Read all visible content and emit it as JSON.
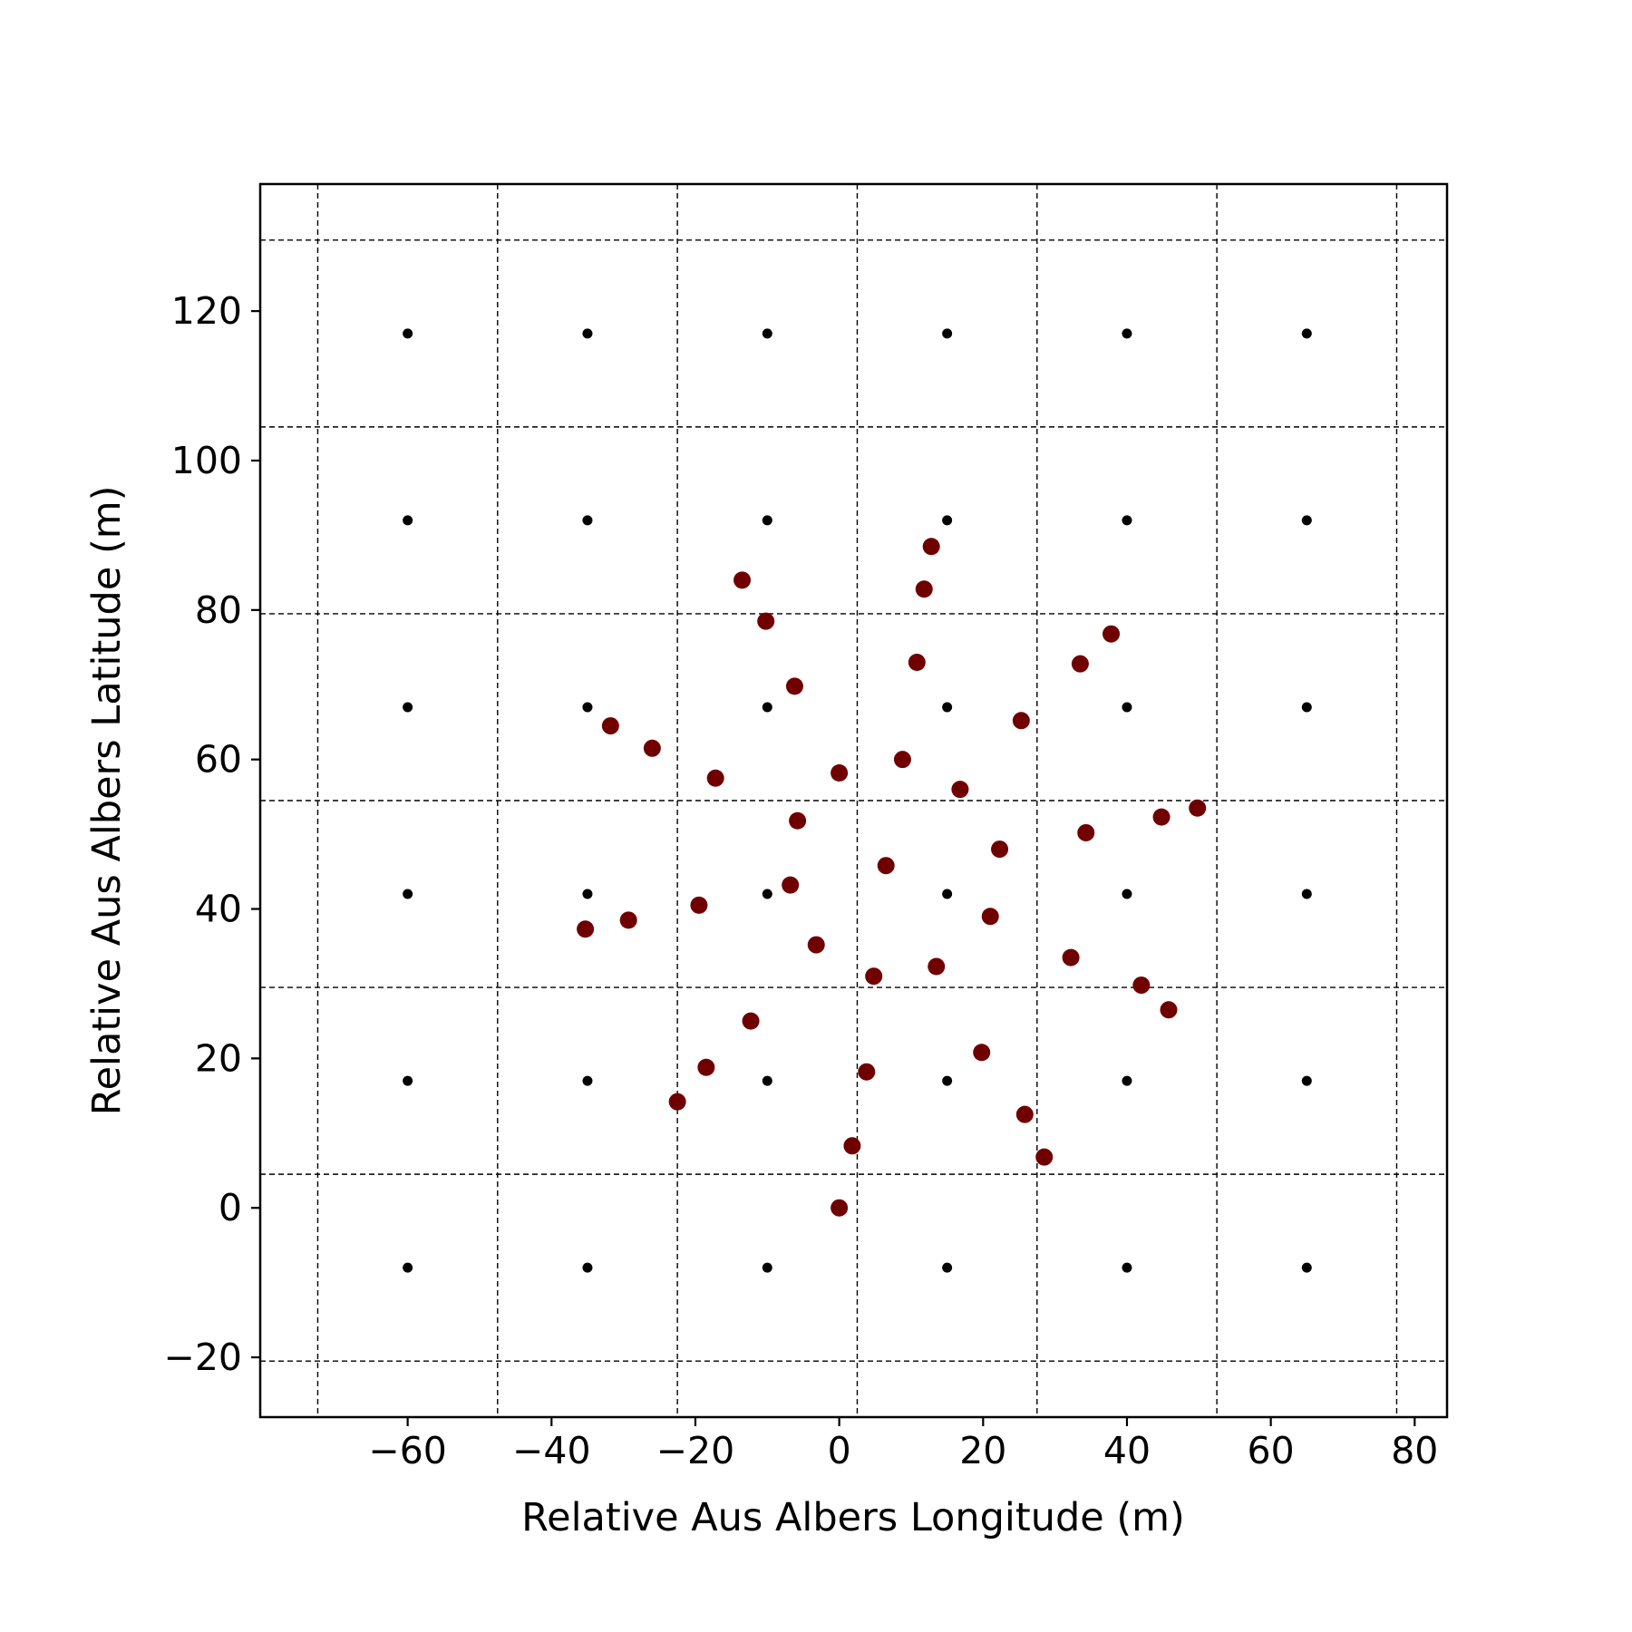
{
  "chart_data": {
    "type": "scatter",
    "title": "",
    "xlabel": "Relative Aus Albers Longitude (m)",
    "ylabel": "Relative Aus Albers Latitude (m)",
    "xlim": [
      -80.5,
      84.5
    ],
    "ylim": [
      -28,
      137
    ],
    "x_ticks": [
      -60,
      -40,
      -20,
      0,
      20,
      40,
      60,
      80
    ],
    "y_ticks": [
      -20,
      0,
      20,
      40,
      60,
      80,
      100,
      120
    ],
    "x_tick_labels": [
      "−60",
      "−40",
      "−20",
      "0",
      "20",
      "40",
      "60",
      "80"
    ],
    "y_tick_labels": [
      "−20",
      "0",
      "20",
      "40",
      "60",
      "80",
      "100",
      "120"
    ],
    "grid": {
      "style": "dashed",
      "x_lines": [
        -72.5,
        -47.5,
        -22.5,
        2.5,
        27.5,
        52.5,
        77.5
      ],
      "y_lines": [
        -20.5,
        4.5,
        29.5,
        54.5,
        79.5,
        104.5,
        129.5
      ]
    },
    "legend": "none",
    "series": [
      {
        "marker": "small-circle",
        "color": "#000000",
        "points": [
          [
            -60,
            117
          ],
          [
            -35,
            117
          ],
          [
            -10,
            117
          ],
          [
            15,
            117
          ],
          [
            40,
            117
          ],
          [
            65,
            117
          ],
          [
            -60,
            92
          ],
          [
            -35,
            92
          ],
          [
            -10,
            92
          ],
          [
            15,
            92
          ],
          [
            40,
            92
          ],
          [
            65,
            92
          ],
          [
            -60,
            67
          ],
          [
            -35,
            67
          ],
          [
            -10,
            67
          ],
          [
            15,
            67
          ],
          [
            40,
            67
          ],
          [
            65,
            67
          ],
          [
            -60,
            42
          ],
          [
            -35,
            42
          ],
          [
            -10,
            42
          ],
          [
            15,
            42
          ],
          [
            40,
            42
          ],
          [
            65,
            42
          ],
          [
            -60,
            17
          ],
          [
            -35,
            17
          ],
          [
            -10,
            17
          ],
          [
            15,
            17
          ],
          [
            40,
            17
          ],
          [
            65,
            17
          ],
          [
            -60,
            -8
          ],
          [
            -35,
            -8
          ],
          [
            -10,
            -8
          ],
          [
            15,
            -8
          ],
          [
            40,
            -8
          ],
          [
            65,
            -8
          ]
        ]
      },
      {
        "marker": "circle",
        "color": "#700000",
        "points": [
          [
            12.8,
            88.5
          ],
          [
            -13.5,
            84
          ],
          [
            11.8,
            82.8
          ],
          [
            -10.2,
            78.5
          ],
          [
            37.8,
            76.8
          ],
          [
            10.8,
            73
          ],
          [
            33.5,
            72.8
          ],
          [
            -6.2,
            69.8
          ],
          [
            25.3,
            65.2
          ],
          [
            -31.8,
            64.5
          ],
          [
            -26,
            61.5
          ],
          [
            8.8,
            60
          ],
          [
            -17.2,
            57.5
          ],
          [
            0,
            58.2
          ],
          [
            16.8,
            56
          ],
          [
            49.8,
            53.5
          ],
          [
            44.8,
            52.3
          ],
          [
            -5.8,
            51.8
          ],
          [
            34.3,
            50.2
          ],
          [
            22.3,
            48
          ],
          [
            6.5,
            45.8
          ],
          [
            -6.8,
            43.2
          ],
          [
            -19.5,
            40.5
          ],
          [
            21,
            39
          ],
          [
            -29.3,
            38.5
          ],
          [
            -35.3,
            37.3
          ],
          [
            -3.2,
            35.2
          ],
          [
            32.2,
            33.5
          ],
          [
            13.5,
            32.3
          ],
          [
            4.8,
            31
          ],
          [
            42,
            29.8
          ],
          [
            45.8,
            26.5
          ],
          [
            -12.3,
            25
          ],
          [
            19.8,
            20.8
          ],
          [
            -18.5,
            18.8
          ],
          [
            3.8,
            18.2
          ],
          [
            -22.5,
            14.2
          ],
          [
            25.8,
            12.5
          ],
          [
            1.8,
            8.3
          ],
          [
            28.5,
            6.8
          ],
          [
            0,
            0
          ]
        ]
      }
    ]
  }
}
